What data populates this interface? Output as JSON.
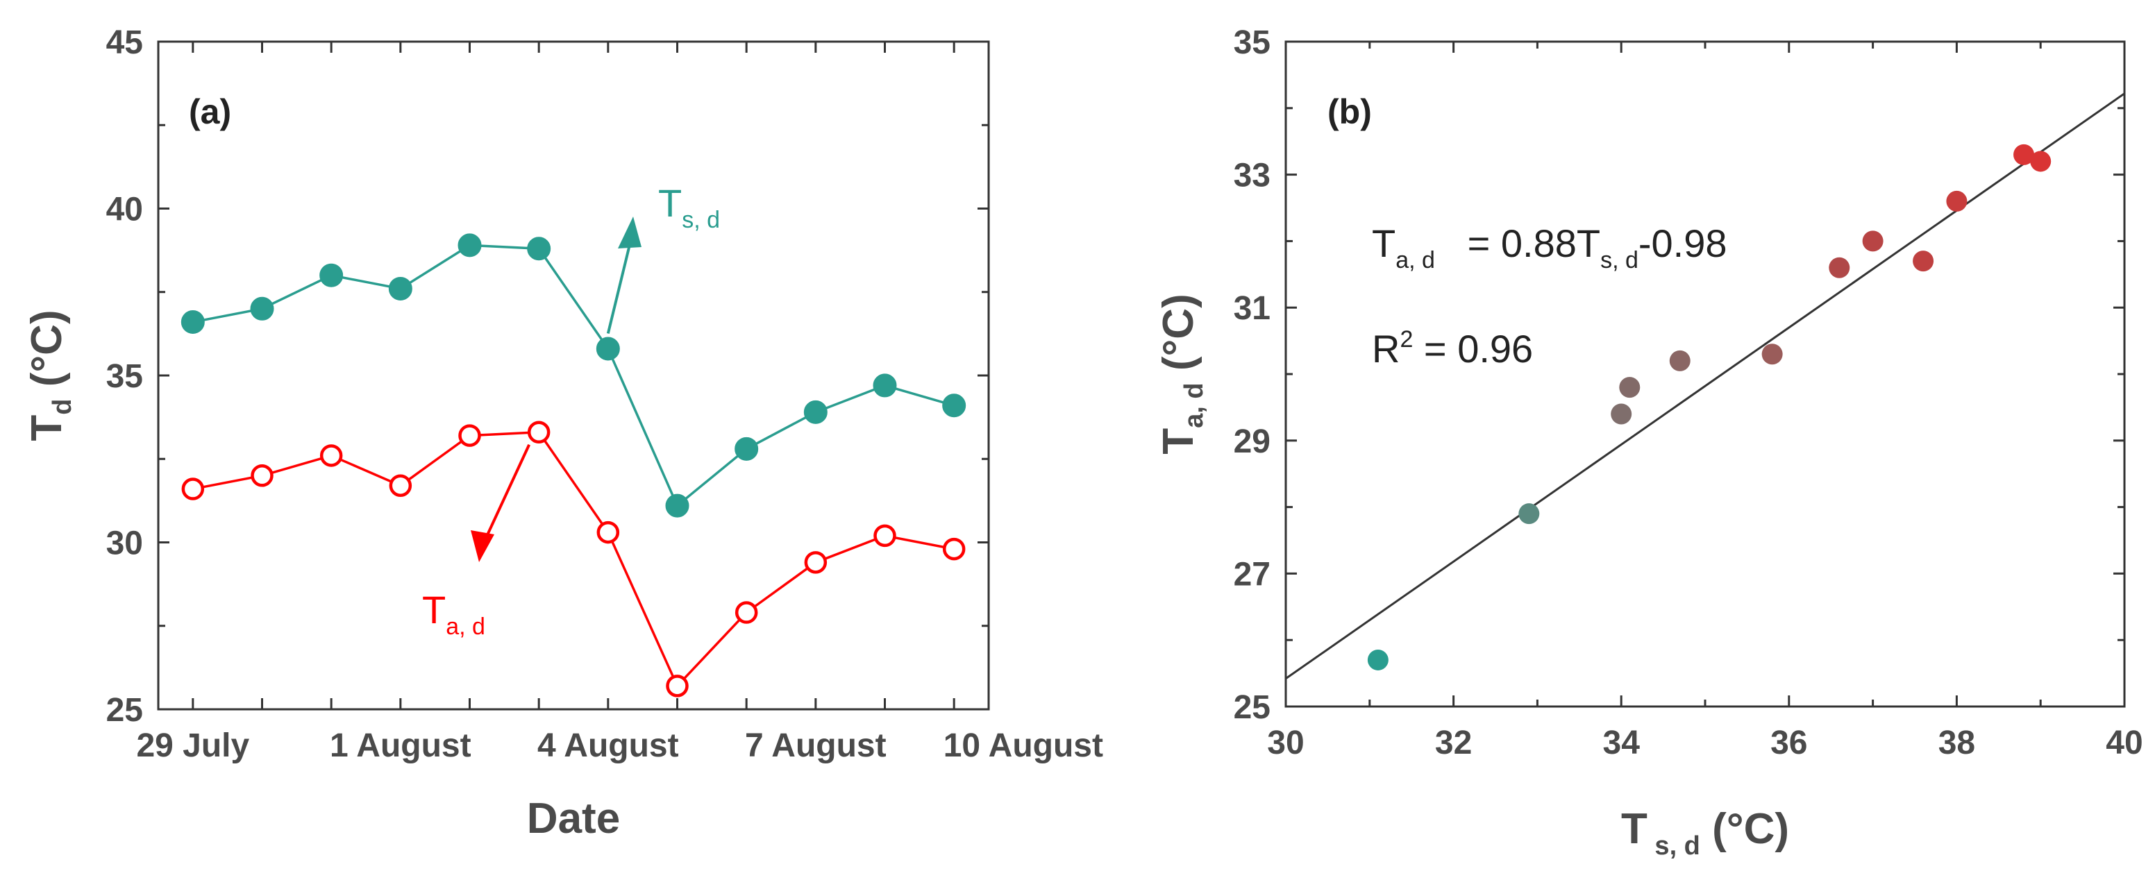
{
  "chart_data": [
    {
      "panel": "(a)",
      "type": "line",
      "xlabel": "Date",
      "ylabel": "T",
      "ylabel_sub": "d",
      "ylabel_unit": "(°C)",
      "ylim": [
        25,
        45
      ],
      "yticks": [
        25,
        30,
        35,
        40,
        45
      ],
      "xticks": [
        {
          "index": 0,
          "label": "29 July"
        },
        {
          "index": 3,
          "label": "1 August"
        },
        {
          "index": 6,
          "label": "4 August"
        },
        {
          "index": 9,
          "label": "7 August"
        },
        {
          "index": 12,
          "label": "10 August"
        }
      ],
      "series": [
        {
          "name": "T s, d",
          "label_main": "T",
          "label_sub": "s, d",
          "color": "#2a9d8f",
          "marker": "filled",
          "values": [
            36.6,
            37.0,
            38.0,
            37.6,
            38.9,
            38.8,
            35.8,
            31.1,
            32.8,
            33.9,
            34.7,
            34.1
          ]
        },
        {
          "name": "T a, d",
          "label_main": "T",
          "label_sub": "a, d",
          "color": "#ff0000",
          "marker": "open",
          "values": [
            31.6,
            32.0,
            32.6,
            31.7,
            33.2,
            33.3,
            30.3,
            25.7,
            27.9,
            29.4,
            30.2,
            29.8
          ]
        }
      ]
    },
    {
      "panel": "(b)",
      "type": "scatter",
      "xlabel": "T",
      "xlabel_sub": "s, d",
      "xlabel_unit": "(°C)",
      "ylabel": "T",
      "ylabel_sub": "a, d",
      "ylabel_unit": "(°C)",
      "xlim": [
        30,
        40
      ],
      "ylim": [
        25,
        35
      ],
      "xticks": [
        30,
        32,
        34,
        36,
        38,
        40
      ],
      "yticks": [
        25,
        27,
        29,
        31,
        33,
        35
      ],
      "fit": {
        "slope": 0.88,
        "intercept": -0.98,
        "eq_lhs_main": "T",
        "eq_lhs_sub": "a, d",
        "eq_mid": "= 0.88T",
        "eq_mid_sub": "s, d",
        "eq_tail": "-0.98",
        "r2_main": "R",
        "r2_sup": "2",
        "r2_tail": "= 0.96",
        "color": "#333333"
      },
      "points": [
        {
          "x": 31.1,
          "y": 25.7,
          "color": "#2a9d8f"
        },
        {
          "x": 32.9,
          "y": 27.9,
          "color": "#5a8a80"
        },
        {
          "x": 34.0,
          "y": 29.4,
          "color": "#7f6e6c"
        },
        {
          "x": 34.1,
          "y": 29.8,
          "color": "#826a68"
        },
        {
          "x": 34.7,
          "y": 30.2,
          "color": "#8a6664"
        },
        {
          "x": 35.8,
          "y": 30.3,
          "color": "#9a5c5a"
        },
        {
          "x": 36.6,
          "y": 31.6,
          "color": "#b04848"
        },
        {
          "x": 37.0,
          "y": 32.0,
          "color": "#b84444"
        },
        {
          "x": 37.6,
          "y": 31.7,
          "color": "#bf4040"
        },
        {
          "x": 38.0,
          "y": 32.6,
          "color": "#c83c3c"
        },
        {
          "x": 38.8,
          "y": 33.3,
          "color": "#d93434"
        },
        {
          "x": 39.0,
          "y": 33.2,
          "color": "#d93434"
        }
      ]
    }
  ]
}
